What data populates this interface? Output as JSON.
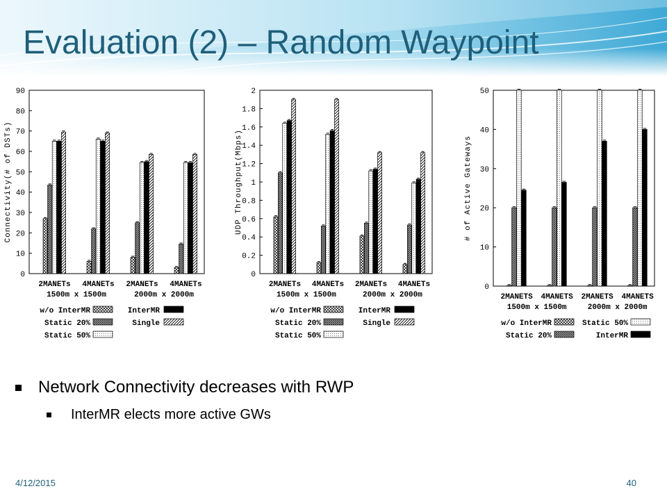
{
  "slide": {
    "title": "Evaluation (2) – Random Waypoint",
    "bullets": [
      {
        "level": 1,
        "text": "Network Connectivity decreases with RWP"
      },
      {
        "level": 2,
        "text": "InterMR elects more active GWs"
      }
    ],
    "footer": {
      "date": "4/12/2015",
      "page": "40"
    },
    "colors": {
      "title": "#1f5f7a",
      "banner": "#7ec8e3"
    }
  },
  "chart_data": [
    {
      "type": "bar",
      "ylabel": "Connectivity(# of DSTs)",
      "ylim": [
        0,
        90
      ],
      "yticks": [
        "0",
        "10",
        "20",
        "30",
        "40",
        "50",
        "60",
        "70",
        "80",
        "90"
      ],
      "groups": [
        "2MANETs",
        "4MANETs",
        "2MANETs",
        "4MANETs"
      ],
      "group_sublabels": [
        "1500m x 1500m",
        "2000m x 2000m"
      ],
      "series": [
        {
          "name": "w/o InterMR",
          "pattern": "xhatch",
          "values": [
            27,
            6,
            8,
            3
          ]
        },
        {
          "name": "Static 20%",
          "pattern": "dense",
          "values": [
            43.5,
            22,
            25,
            14.5
          ]
        },
        {
          "name": "Static 50%",
          "pattern": "dots",
          "values": [
            65,
            66,
            54.5,
            54.5
          ]
        },
        {
          "name": "InterMR",
          "pattern": "solid",
          "values": [
            65,
            65,
            55,
            54.5
          ]
        },
        {
          "name": "Single",
          "pattern": "diag",
          "values": [
            69.5,
            69,
            58.5,
            58.5
          ]
        }
      ],
      "legend": {
        "left": [
          "w/o InterMR",
          "Static 20%",
          "Static 50%"
        ],
        "right": [
          "InterMR",
          "Single"
        ]
      },
      "grid": false
    },
    {
      "type": "bar",
      "ylabel": "UDP Throughput(Mbps)",
      "ylim": [
        0,
        2
      ],
      "yticks": [
        "0",
        "0.2",
        "0.4",
        "0.6",
        "0.8",
        "1",
        "1.2",
        "1.4",
        "1.6",
        "1.8",
        "2"
      ],
      "groups": [
        "2MANETs",
        "4MANETs",
        "2MANETs",
        "4MANETs"
      ],
      "group_sublabels": [
        "1500m x 1500m",
        "2000m x 2000m"
      ],
      "series": [
        {
          "name": "w/o InterMR",
          "pattern": "xhatch",
          "values": [
            0.62,
            0.12,
            0.41,
            0.1
          ]
        },
        {
          "name": "Static 20%",
          "pattern": "dense",
          "values": [
            1.1,
            0.52,
            0.55,
            0.53
          ]
        },
        {
          "name": "Static 50%",
          "pattern": "dots",
          "values": [
            1.64,
            1.52,
            1.12,
            0.99
          ]
        },
        {
          "name": "InterMR",
          "pattern": "solid",
          "values": [
            1.67,
            1.56,
            1.14,
            1.03
          ]
        },
        {
          "name": "Single",
          "pattern": "diag",
          "values": [
            1.9,
            1.9,
            1.32,
            1.32
          ]
        }
      ],
      "legend": {
        "left": [
          "w/o InterMR",
          "Static 20%",
          "Static 50%"
        ],
        "right": [
          "InterMR",
          "Single"
        ]
      },
      "grid": false
    },
    {
      "type": "bar",
      "ylabel": "# of Active Gateways",
      "ylim": [
        0,
        50
      ],
      "yticks": [
        "0",
        "10",
        "20",
        "30",
        "40",
        "50"
      ],
      "groups": [
        "2MANETS",
        "4MANETS",
        "2MANETS",
        "4MANETS"
      ],
      "group_sublabels": [
        "1500m x 1500m",
        "2000m x 2000m"
      ],
      "series": [
        {
          "name": "w/o InterMR",
          "pattern": "xhatch",
          "values": [
            0,
            0,
            0,
            0
          ]
        },
        {
          "name": "Static 20%",
          "pattern": "dense",
          "values": [
            20,
            20,
            20,
            20
          ]
        },
        {
          "name": "Static 50%",
          "pattern": "dots",
          "values": [
            50,
            50,
            50,
            50
          ]
        },
        {
          "name": "InterMR",
          "pattern": "solid",
          "values": [
            24.5,
            26.5,
            37,
            40
          ]
        }
      ],
      "legend": {
        "left": [
          "w/o InterMR",
          "Static 20%"
        ],
        "right": [
          "Static 50%",
          "InterMR"
        ]
      },
      "grid": false
    }
  ]
}
